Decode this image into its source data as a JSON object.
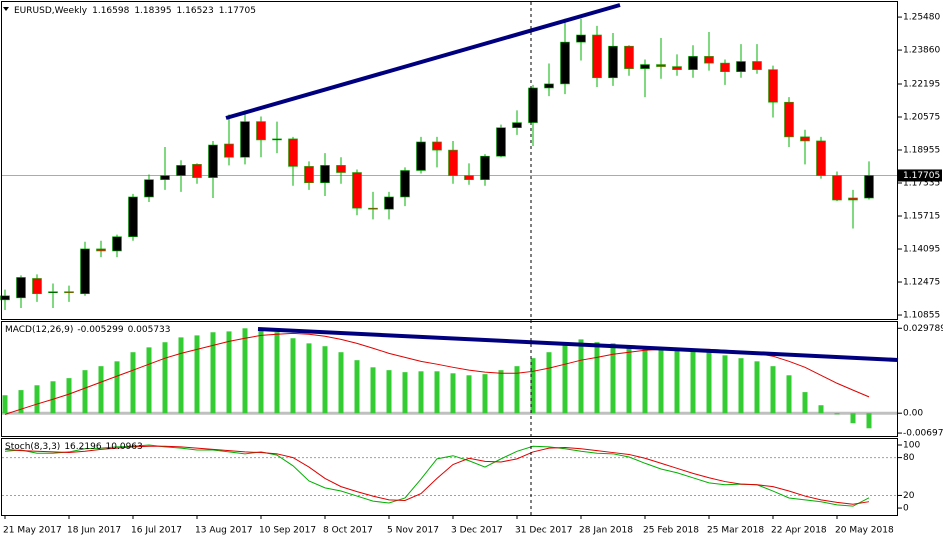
{
  "chart_data": [
    {
      "type": "candlestick",
      "title": "EURUSD,Weekly",
      "categories": [
        "21 May 2017",
        null,
        null,
        null,
        "18 Jun 2017",
        null,
        null,
        null,
        "16 Jul 2017",
        null,
        null,
        null,
        "13 Aug 2017",
        null,
        null,
        null,
        "10 Sep 2017",
        null,
        null,
        null,
        "8 Oct 2017",
        null,
        null,
        null,
        "5 Nov 2017",
        null,
        null,
        null,
        "3 Dec 2017",
        null,
        null,
        null,
        "31 Dec 2017",
        null,
        null,
        null,
        "28 Jan 2018",
        null,
        null,
        null,
        "25 Feb 2018",
        null,
        null,
        null,
        "25 Mar 2018",
        null,
        null,
        null,
        "22 Apr 2018",
        null,
        null,
        null,
        "20 May 2018",
        null,
        null
      ],
      "open": [
        1.116,
        1.117,
        1.1265,
        1.1195,
        1.12,
        1.119,
        1.141,
        1.14,
        1.147,
        1.1665,
        1.175,
        1.177,
        1.1825,
        1.176,
        1.1925,
        1.186,
        1.2035,
        1.1945,
        1.195,
        1.1815,
        1.1735,
        1.182,
        1.1785,
        1.161,
        1.1605,
        1.1665,
        1.1795,
        1.1935,
        1.1895,
        1.177,
        1.175,
        1.1865,
        1.2005,
        1.203,
        1.22,
        1.222,
        1.2425,
        1.246,
        1.225,
        1.2405,
        1.2295,
        1.2315,
        1.2305,
        1.229,
        1.2355,
        1.2322,
        1.228,
        1.233,
        1.229,
        1.213,
        1.196,
        1.194,
        1.177,
        1.166,
        1.16598
      ],
      "high": [
        1.121,
        1.128,
        1.1285,
        1.124,
        1.123,
        1.1445,
        1.145,
        1.148,
        1.168,
        1.1775,
        1.191,
        1.1845,
        1.183,
        1.194,
        1.207,
        1.209,
        1.206,
        1.2035,
        1.196,
        1.184,
        1.188,
        1.186,
        1.18,
        1.169,
        1.169,
        1.181,
        1.196,
        1.196,
        1.194,
        1.183,
        1.1875,
        1.202,
        1.209,
        1.2215,
        1.232,
        1.254,
        1.254,
        1.2505,
        1.247,
        1.241,
        1.234,
        1.2445,
        1.2365,
        1.241,
        1.2475,
        1.234,
        1.2415,
        1.2415,
        1.231,
        1.2155,
        1.1995,
        1.196,
        1.179,
        1.17,
        1.18395
      ],
      "low": [
        1.111,
        1.112,
        1.115,
        1.112,
        1.115,
        1.118,
        1.137,
        1.137,
        1.145,
        1.164,
        1.17,
        1.169,
        1.173,
        1.166,
        1.182,
        1.1825,
        1.186,
        1.188,
        1.172,
        1.17,
        1.167,
        1.173,
        1.1575,
        1.1555,
        1.1555,
        1.162,
        1.178,
        1.181,
        1.173,
        1.1725,
        1.172,
        1.186,
        1.197,
        1.1915,
        1.216,
        1.217,
        1.2335,
        1.2205,
        1.221,
        1.226,
        1.2155,
        1.2245,
        1.226,
        1.225,
        1.2285,
        1.2215,
        1.225,
        1.227,
        1.2055,
        1.191,
        1.1825,
        1.1755,
        1.1645,
        1.151,
        1.16523
      ],
      "close": [
        1.118,
        1.127,
        1.119,
        1.12,
        1.1195,
        1.141,
        1.14,
        1.147,
        1.1665,
        1.175,
        1.177,
        1.182,
        1.176,
        1.192,
        1.186,
        1.2035,
        1.1945,
        1.195,
        1.1815,
        1.1735,
        1.182,
        1.1785,
        1.161,
        1.1605,
        1.1665,
        1.1795,
        1.1935,
        1.1895,
        1.177,
        1.175,
        1.1865,
        1.2005,
        1.203,
        1.22,
        1.222,
        1.2425,
        1.246,
        1.225,
        1.2405,
        1.2295,
        1.2315,
        1.2305,
        1.229,
        1.2355,
        1.2322,
        1.228,
        1.233,
        1.229,
        1.213,
        1.196,
        1.194,
        1.177,
        1.165,
        1.165,
        1.17705
      ],
      "colors": {
        "up": "#000000",
        "down": "#ff0000",
        "wick": "#00b000"
      },
      "ylim": [
        1.1066,
        1.2622
      ],
      "yticks": [
        {
          "value": 1.2548,
          "label": "1.25480"
        },
        {
          "value": 1.2386,
          "label": "1.23860"
        },
        {
          "value": 1.22195,
          "label": "1.22195"
        },
        {
          "value": 1.20575,
          "label": "1.20575"
        },
        {
          "value": 1.18955,
          "label": "1.18955"
        },
        {
          "value": 1.17335,
          "label": "1.17335"
        },
        {
          "value": 1.15715,
          "label": "1.15715"
        },
        {
          "value": 1.14095,
          "label": "1.14095"
        },
        {
          "value": 1.12475,
          "label": "1.12475"
        },
        {
          "value": 1.10855,
          "label": "1.10855"
        }
      ]
    },
    {
      "type": "macd",
      "title": "MACD(12,26,9)",
      "series": [
        {
          "color": "#33cc33",
          "values": [
            0.0063,
            0.0081,
            0.0098,
            0.0112,
            0.0123,
            0.0151,
            0.0165,
            0.0182,
            0.0214,
            0.0231,
            0.0249,
            0.0266,
            0.0273,
            0.0284,
            0.0287,
            0.029789,
            0.0291,
            0.0284,
            0.0263,
            0.0245,
            0.0235,
            0.0214,
            0.0186,
            0.0161,
            0.0151,
            0.0144,
            0.0147,
            0.0147,
            0.014,
            0.0133,
            0.0137,
            0.0151,
            0.0165,
            0.0193,
            0.0214,
            0.0242,
            0.0259,
            0.0249,
            0.0245,
            0.0238,
            0.0235,
            0.0228,
            0.0221,
            0.0217,
            0.0214,
            0.0203,
            0.0193,
            0.0182,
            0.0165,
            0.0133,
            0.0074,
            0.0028,
            -0.0004,
            -0.0035,
            -0.005299
          ]
        },
        {
          "color": "#e00000",
          "values": [
            -0.0004,
            0.0014,
            0.0032,
            0.0049,
            0.0067,
            0.0088,
            0.0109,
            0.013,
            0.0151,
            0.0172,
            0.0193,
            0.021,
            0.0224,
            0.0238,
            0.0252,
            0.0263,
            0.0273,
            0.0277,
            0.028,
            0.0277,
            0.027,
            0.0259,
            0.0245,
            0.0228,
            0.021,
            0.0196,
            0.0182,
            0.0172,
            0.0161,
            0.0151,
            0.0144,
            0.014,
            0.014,
            0.0147,
            0.0158,
            0.0172,
            0.0186,
            0.0196,
            0.0207,
            0.0214,
            0.0221,
            0.0224,
            0.0224,
            0.0224,
            0.0224,
            0.0221,
            0.0217,
            0.021,
            0.02,
            0.0182,
            0.0161,
            0.0133,
            0.0105,
            0.0081,
            0.005733
          ]
        }
      ],
      "ylim": [
        -0.008,
        0.032
      ],
      "yticks": [
        0.029789,
        {
          "value": 0,
          "label": "0.00"
        },
        -0.00697
      ]
    },
    {
      "type": "stochastic",
      "title": "Stoch(8,3,3)",
      "series": [
        {
          "color": "#00b000",
          "values": [
            90,
            92,
            87,
            87,
            89,
            94,
            95,
            97,
            98,
            100,
            97,
            95,
            92,
            92,
            89,
            86,
            89,
            84,
            67,
            43,
            32,
            27,
            19,
            11,
            8,
            16,
            46,
            78,
            83,
            75,
            65,
            78,
            90,
            98,
            97,
            94,
            90,
            87,
            86,
            81,
            71,
            62,
            56,
            48,
            40,
            37,
            38,
            37,
            27,
            16,
            13,
            10,
            5,
            3,
            16.2196
          ]
        },
        {
          "color": "#e00000",
          "values": [
            93,
            91,
            90,
            89,
            88,
            90,
            93,
            95,
            97,
            98,
            98,
            97,
            95,
            93,
            91,
            89,
            88,
            86,
            80,
            65,
            47,
            34,
            26,
            19,
            13,
            12,
            23,
            47,
            69,
            79,
            74,
            73,
            78,
            89,
            95,
            96,
            94,
            91,
            88,
            85,
            79,
            71,
            63,
            55,
            48,
            42,
            38,
            37,
            34,
            27,
            19,
            13,
            9,
            6,
            10.0963
          ]
        }
      ],
      "ylim": [
        -11,
        109.5
      ],
      "yticks": [
        100,
        80,
        20,
        0
      ],
      "levels": [
        80,
        20
      ]
    }
  ]
}
